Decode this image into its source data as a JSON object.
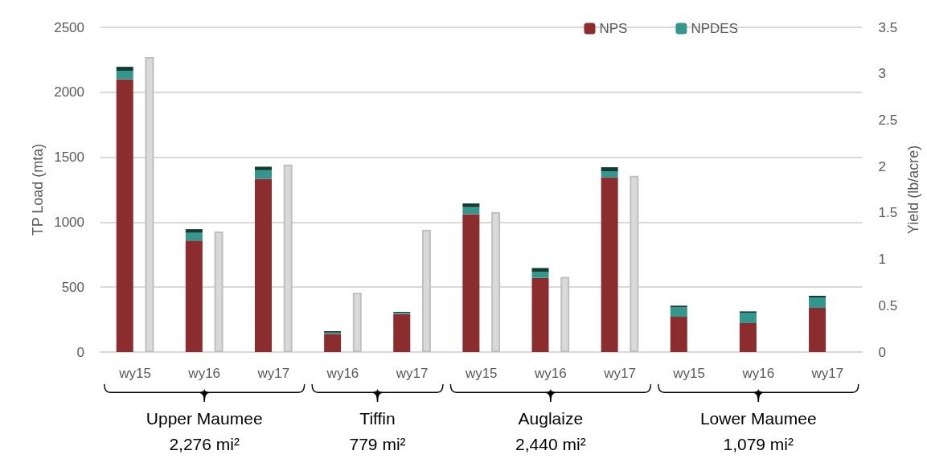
{
  "chart_data": {
    "type": "bar",
    "stacked": true,
    "categories": [
      "wy15",
      "wy16",
      "wy17",
      "wy16",
      "wy17",
      "wy15",
      "wy16",
      "wy17",
      "wy15",
      "wy16",
      "wy17"
    ],
    "series": [
      {
        "name": "NPS",
        "color": "#8b2c2e",
        "values": [
          2100,
          858,
          1334,
          140,
          293,
          1062,
          571,
          1344,
          272,
          223,
          340
        ]
      },
      {
        "name": "NPDES",
        "color": "#35968e",
        "values": [
          65,
          60,
          66,
          10,
          10,
          54,
          48,
          48,
          72,
          80,
          81
        ]
      },
      {
        "color": "#0f3b30",
        "values": [
          31,
          28,
          27,
          11,
          6,
          28,
          28,
          31,
          13,
          10,
          12
        ]
      },
      {
        "color": "#d9d9d9",
        "axis": "y2",
        "values": [
          3.18,
          1.3,
          2.02,
          0.64,
          1.32,
          1.51,
          0.81,
          1.9,
          null,
          null,
          null
        ]
      }
    ],
    "ylabel": "TP Load (mta)",
    "y2label": "Yield (lb/acre)",
    "ylim": [
      0,
      2500
    ],
    "yticks": [
      0,
      500,
      1000,
      1500,
      2000,
      2500
    ],
    "y2lim": [
      0,
      3.5
    ],
    "y2ticks": [
      0,
      0.5,
      1,
      1.5,
      2,
      2.5,
      3,
      3.5
    ],
    "grid": "y",
    "legend": "top right",
    "annotations": [
      "Upper Maumee",
      "2,276 mi²",
      "Tiffin",
      "779 mi²",
      "Auglaize",
      "2,440 mi²",
      "Lower Maumee",
      "1,079 mi²"
    ]
  }
}
